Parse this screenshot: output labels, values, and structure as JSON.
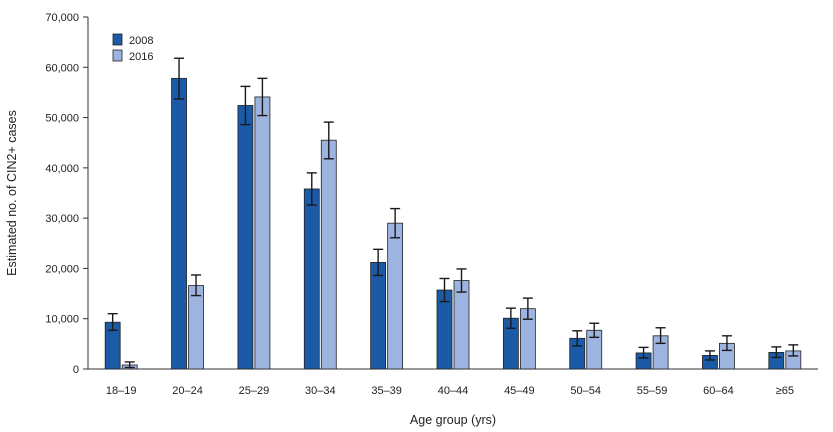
{
  "chart_data": {
    "type": "bar",
    "xlabel": "Age group (yrs)",
    "ylabel": "Estimated no. of CIN2+ cases",
    "ylim": [
      0,
      70000
    ],
    "yticks": [
      0,
      10000,
      20000,
      30000,
      40000,
      50000,
      60000,
      70000
    ],
    "ytick_labels": [
      "0",
      "10,000",
      "20,000",
      "30,000",
      "40,000",
      "50,000",
      "60,000",
      "70,000"
    ],
    "categories": [
      "18–19",
      "20–24",
      "25–29",
      "30–34",
      "35–39",
      "40–44",
      "45–49",
      "50–54",
      "55–59",
      "60–64",
      "≥65"
    ],
    "series": [
      {
        "name": "2008",
        "color": "#1a5aa6",
        "values": [
          9300,
          57800,
          52400,
          35800,
          21200,
          15700,
          10100,
          6100,
          3200,
          2700,
          3300
        ],
        "error_low": [
          7700,
          53700,
          48600,
          32600,
          18600,
          13400,
          8100,
          4600,
          2200,
          1800,
          2300
        ],
        "error_high": [
          11000,
          61800,
          56200,
          39000,
          23800,
          18000,
          12100,
          7600,
          4300,
          3600,
          4400
        ]
      },
      {
        "name": "2016",
        "color": "#9db3e0",
        "values": [
          800,
          16600,
          54100,
          45500,
          29000,
          17600,
          12000,
          7700,
          6600,
          5100,
          3600
        ],
        "error_low": [
          300,
          14600,
          50400,
          41800,
          26100,
          15300,
          9900,
          6300,
          5100,
          3700,
          2600
        ],
        "error_high": [
          1400,
          18700,
          57800,
          49100,
          31900,
          19900,
          14100,
          9100,
          8200,
          6600,
          4800
        ]
      }
    ],
    "legend_position": "top-left",
    "grid": false
  }
}
